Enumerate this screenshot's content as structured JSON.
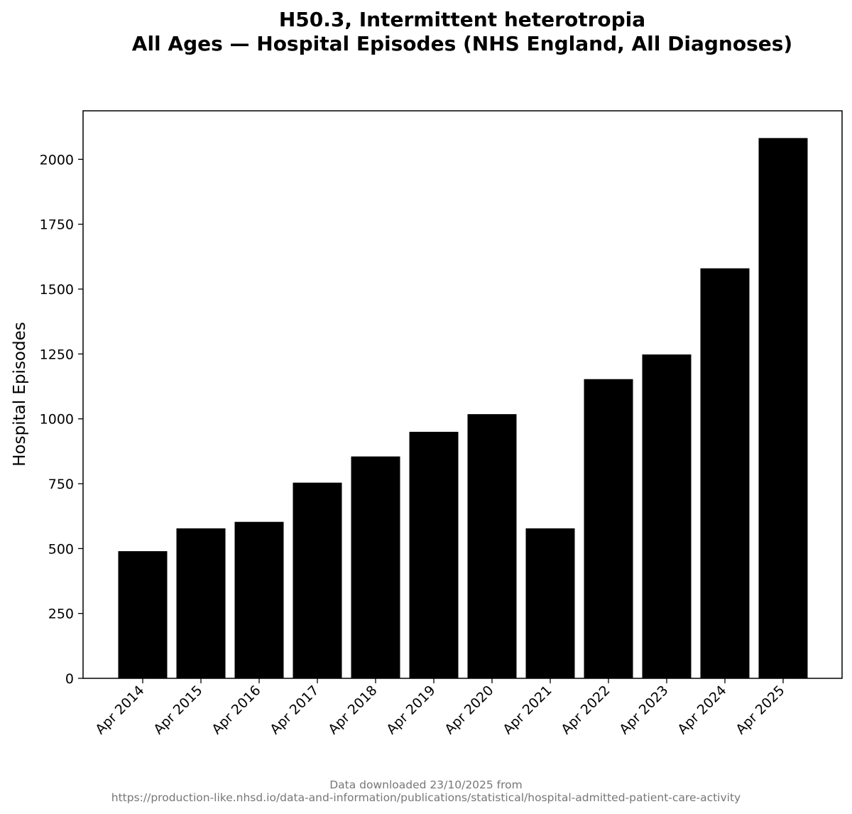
{
  "chart_data": {
    "type": "bar",
    "title_line1": "H50.3, Intermittent heterotropia",
    "title_line2": "All Ages — Hospital Episodes (NHS England, All Diagnoses)",
    "xlabel": "",
    "ylabel": "Hospital Episodes",
    "categories": [
      "Apr 2014",
      "Apr 2015",
      "Apr 2016",
      "Apr 2017",
      "Apr 2018",
      "Apr 2019",
      "Apr 2020",
      "Apr 2021",
      "Apr 2022",
      "Apr 2023",
      "Apr 2024",
      "Apr 2025"
    ],
    "values": [
      490,
      578,
      603,
      754,
      855,
      950,
      1018,
      578,
      1153,
      1248,
      1580,
      2082
    ],
    "ylim": [
      0,
      2187
    ],
    "yticks": [
      0,
      250,
      500,
      750,
      1000,
      1250,
      1500,
      1750,
      2000
    ],
    "bar_color": "#000000",
    "grid": false,
    "legend": "none"
  },
  "footer": {
    "line1": "Data downloaded 23/10/2025 from",
    "line2": "https://production-like.nhsd.io/data-and-information/publications/statistical/hospital-admitted-patient-care-activity"
  }
}
